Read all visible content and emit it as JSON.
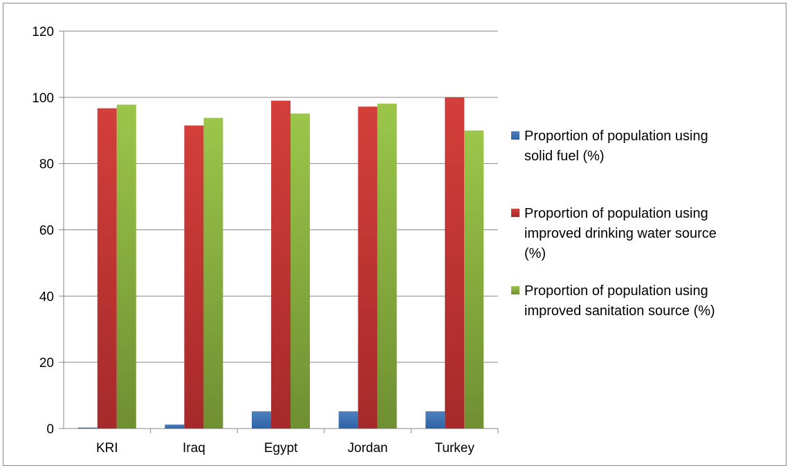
{
  "chart_data": {
    "type": "bar",
    "categories": [
      "KRI",
      "Iraq",
      "Egypt",
      "Jordan",
      "Turkey"
    ],
    "series": [
      {
        "name": "Proportion of population using solid fuel (%)",
        "legend_lines": [
          "Proportion of population using",
          "solid fuel (%)"
        ],
        "values": [
          0.3,
          1.2,
          5.2,
          5.2,
          5.2
        ],
        "color_top": "#4f81bd",
        "color_bottom": "#2e62a8"
      },
      {
        "name": "Proportion of population using improved drinking water source (%)",
        "legend_lines": [
          "Proportion of population using",
          "improved drinking water source",
          "(%)"
        ],
        "values": [
          96.7,
          91.5,
          99,
          97.2,
          100
        ],
        "color_top": "#d43f3a",
        "color_bottom": "#a52a2a"
      },
      {
        "name": "Proportion of population using improved sanitation source (%)",
        "legend_lines": [
          "Proportion of population using",
          "improved sanitation source (%)"
        ],
        "values": [
          97.8,
          93.8,
          95.1,
          98.1,
          90
        ],
        "color_top": "#9bc64a",
        "color_bottom": "#6f8f32"
      }
    ],
    "ylim": [
      0,
      120
    ],
    "yticks": [
      "0",
      "20",
      "40",
      "60",
      "80",
      "100",
      "120"
    ],
    "grid": true,
    "legend_position": "right"
  }
}
